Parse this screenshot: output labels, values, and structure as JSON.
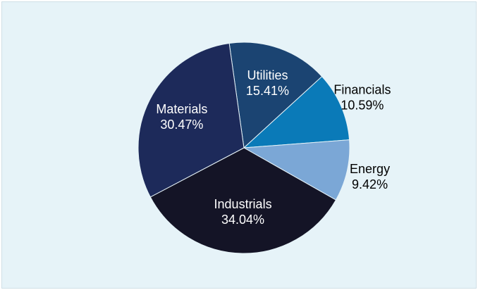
{
  "chart_data": {
    "type": "pie",
    "start_angle_deg": -8,
    "direction": "clockwise",
    "slices": [
      {
        "label": "Utilities",
        "pct_label": "15.41%",
        "value": 15.41,
        "color": "#1b4472",
        "text_color": "#ffffff"
      },
      {
        "label": "Financials",
        "pct_label": "10.59%",
        "value": 10.59,
        "color": "#0a7ab8",
        "text_color": "#000000"
      },
      {
        "label": "Energy",
        "pct_label": "9.42%",
        "value": 9.42,
        "color": "#7ba7d6",
        "text_color": "#000000"
      },
      {
        "label": "Industrials",
        "pct_label": "34.04%",
        "value": 34.04,
        "color": "#141426",
        "text_color": "#ffffff"
      },
      {
        "label": "Materials",
        "pct_label": "30.47%",
        "value": 30.47,
        "color": "#1d2a5a",
        "text_color": "#ffffff"
      }
    ],
    "background": "#e6f3f8"
  }
}
